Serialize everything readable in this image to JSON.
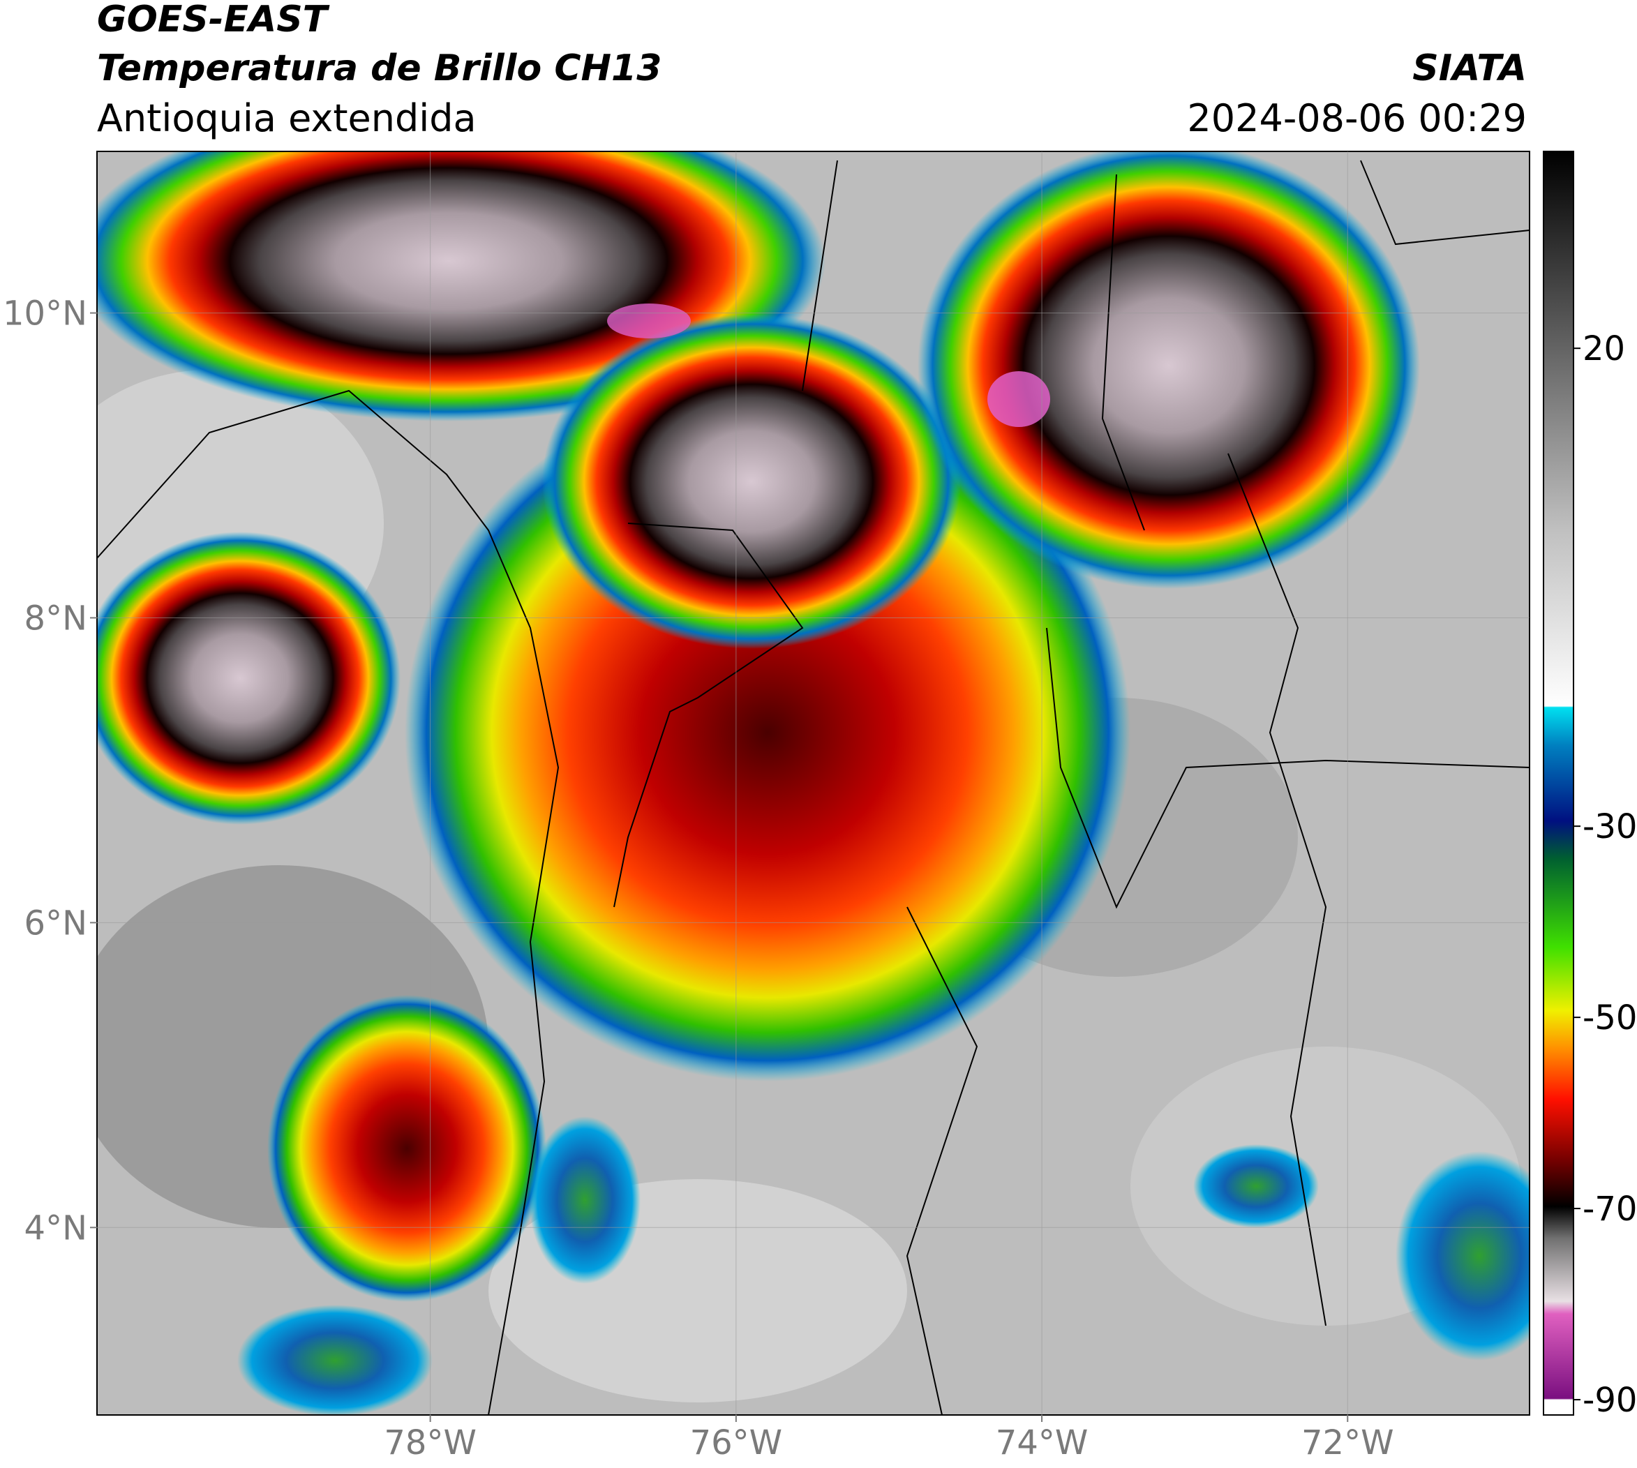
{
  "header": {
    "title": "GOES-EAST",
    "subtitle": "Temperatura de Brillo CH13",
    "region": "Antioquia extendida",
    "source": "SIATA",
    "datetime": "2024-08-06 00:29"
  },
  "map": {
    "xlim": [
      -80.18,
      -70.81
    ],
    "ylim": [
      2.77,
      11.06
    ],
    "xticks": [
      {
        "value": -78,
        "label": "78°W"
      },
      {
        "value": -76,
        "label": "76°W"
      },
      {
        "value": -74,
        "label": "74°W"
      },
      {
        "value": -72,
        "label": "72°W"
      }
    ],
    "yticks": [
      {
        "value": 10,
        "label": "10°N"
      },
      {
        "value": 8,
        "label": "8°N"
      },
      {
        "value": 6,
        "label": "6°N"
      },
      {
        "value": 4,
        "label": "4°N"
      }
    ],
    "grid": true
  },
  "colorbar": {
    "lim": [
      -91.6,
      40.6
    ],
    "ticks": [
      20,
      -30,
      -50,
      -70,
      -90
    ]
  }
}
